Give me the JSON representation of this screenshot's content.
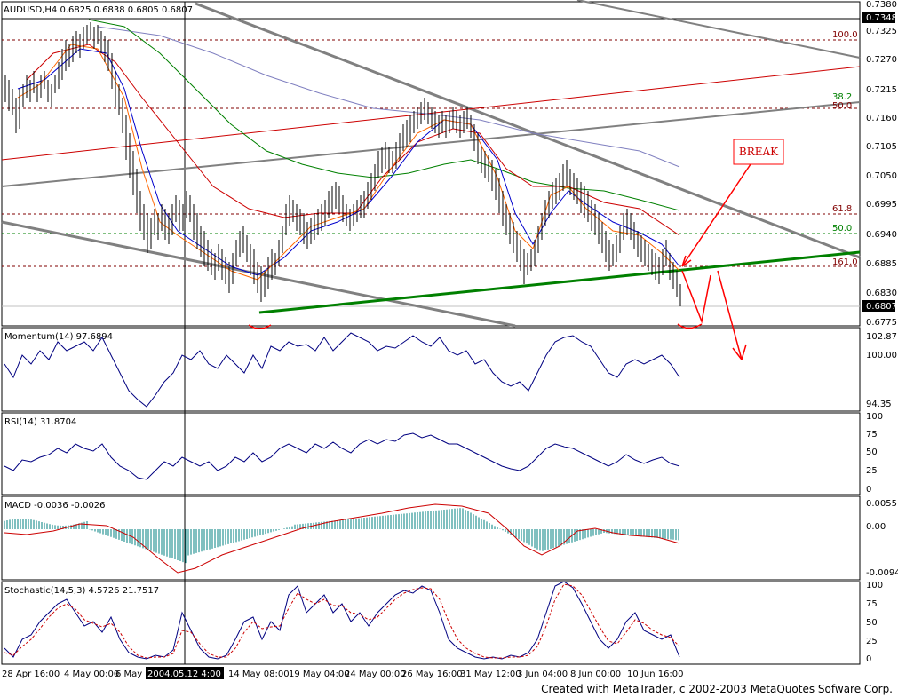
{
  "symbol_header": "AUDUSD,H4  0.6825 0.6838 0.6805 0.6807",
  "price_axis": {
    "ticks": [
      "0.7380",
      "0.7325",
      "0.7270",
      "0.7215",
      "0.7160",
      "0.7105",
      "0.7050",
      "0.6995",
      "0.6940",
      "0.6885",
      "0.6830",
      "0.6775"
    ],
    "boxed_labels": [
      "0.7348",
      "0.6807"
    ]
  },
  "fib_labels": [
    "100.0",
    "38.2",
    "50.0",
    "61.8",
    "50.0",
    "161.0"
  ],
  "annotation_break": "BREAK",
  "indicators": {
    "momentum": {
      "title": "Momentum(14) 97.6894",
      "ticks": [
        "102.87",
        "100.00",
        "94.35"
      ]
    },
    "rsi": {
      "title": "RSI(14) 31.8704",
      "ticks": [
        "100",
        "75",
        "50",
        "25",
        "0"
      ]
    },
    "macd": {
      "title": "MACD -0.0036 -0.0026",
      "ticks": [
        "0.0055",
        "0.00",
        "-0.0094"
      ]
    },
    "stochastic": {
      "title": "Stochastic(14,5,3) 4.5726 21.7517",
      "ticks": [
        "100",
        "75",
        "50",
        "25",
        "0"
      ]
    }
  },
  "time_axis": [
    "28 Apr 16:00",
    "4 May 00:00",
    "6 May",
    "2004.05.12 4:00",
    "14 May 08:00",
    "19 May 04:00",
    "24 May 00:00",
    "26 May 16:00",
    "31 May 12:00",
    "3 Jun 04:00",
    "8 Jun 00:00",
    "10 Jun 16:00"
  ],
  "footer": "Created with MetaTrader, c 2002-2003 MetaQuotes Sofware Corp.",
  "chart_data": {
    "type": "candlestick",
    "ylim": [
      0.6775,
      0.738
    ],
    "last_close": 0.6807,
    "colors": {
      "candles": "#000000",
      "green_line": "#008000",
      "red_line": "#cc0000",
      "gray_line": "#808080",
      "annotation": "#ff0000",
      "indicator": "#000080",
      "macd_hist": "#008080",
      "macd_signal": "#cc0000"
    }
  }
}
